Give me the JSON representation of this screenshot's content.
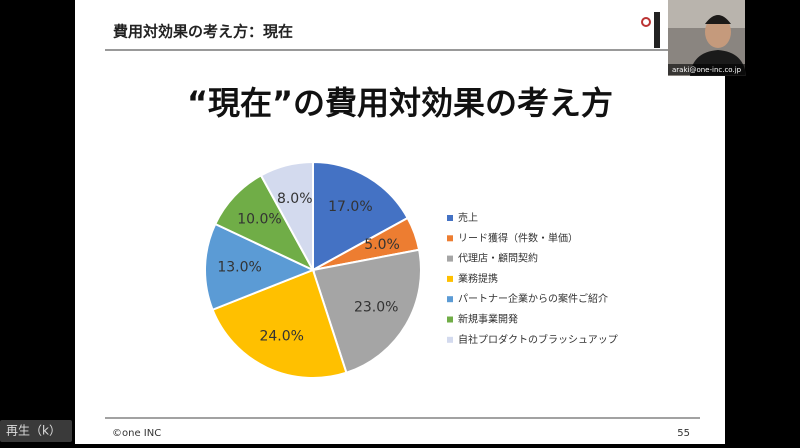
{
  "video_label": "再生（k）",
  "slide": {
    "header": "費用対効果の考え方：現在",
    "footer": "©one INC",
    "page_number": "55"
  },
  "webcam": {
    "name_tag": "araki@one-inc.co.jp"
  },
  "chart_data": {
    "type": "pie",
    "title": "“現在”の費用対効果の考え方",
    "categories": [
      "売上",
      "リード獲得（件数・単価）",
      "代理店・顧問契約",
      "業務提携",
      "パートナー企業からの案件ご紹介",
      "新規事業開発",
      "自社プロダクトのブラッシュアップ"
    ],
    "values": [
      17,
      5,
      23,
      24,
      13,
      10,
      8
    ],
    "value_labels": [
      "17.0%",
      "5.0%",
      "23.0%",
      "24.0%",
      "13.0%",
      "10.0%",
      "8.0%"
    ],
    "colors": [
      "#4472c4",
      "#ed7d31",
      "#a5a5a5",
      "#ffc000",
      "#5b9bd5",
      "#70ad47",
      "#d3daee"
    ]
  }
}
